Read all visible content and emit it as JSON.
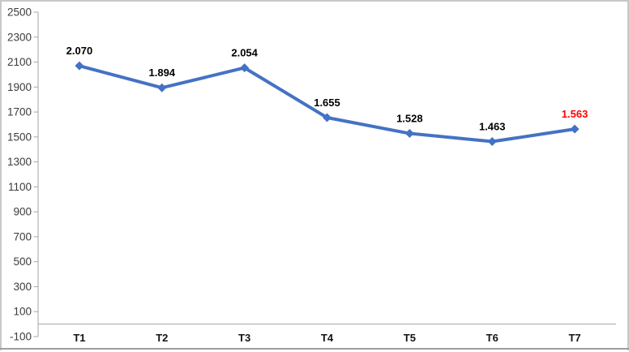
{
  "chart_data": {
    "type": "line",
    "title": "",
    "categories": [
      "T1",
      "T2",
      "T3",
      "T4",
      "T5",
      "T6",
      "T7"
    ],
    "series": [
      {
        "values": [
          2070,
          1894,
          2054,
          1655,
          1528,
          1463,
          1563
        ],
        "point_labels": [
          "2.070",
          "1.894",
          "2.054",
          "1.655",
          "1.528",
          "1.463",
          "1.563"
        ],
        "point_label_colors": [
          "#000000",
          "#000000",
          "#000000",
          "#000000",
          "#000000",
          "#000000",
          "#FF0000"
        ],
        "line_color": "#4472C4",
        "marker": "diamond"
      }
    ],
    "xlabel": "",
    "ylabel": "",
    "ylim": [
      -100,
      2500
    ],
    "ytick_step": 200,
    "yticks": [
      2500,
      2300,
      2100,
      1900,
      1700,
      1500,
      1300,
      1100,
      900,
      700,
      500,
      300,
      100,
      -100
    ],
    "x_axis_cross": 0,
    "grid": false,
    "legend": "none",
    "colors": {
      "axis_line": "#A6A6A6",
      "ytick_label": "#3C3C3C",
      "category_label": "#141414",
      "frame_border": "#C8C8C8",
      "frame_border_bottom": "#9E9E9E",
      "background": "#FFFFFF"
    }
  }
}
